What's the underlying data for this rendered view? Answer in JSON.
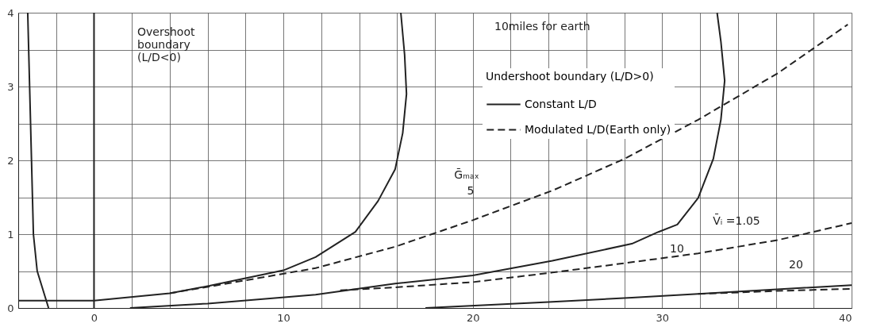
{
  "chart_data": {
    "type": "line",
    "legend_title": "Undershoot boundary (L/D>0)",
    "xlim": [
      -4,
      40
    ],
    "ylim": [
      0,
      4
    ],
    "xticks": [
      {
        "value": -4,
        "label": null
      },
      {
        "value": -2,
        "label": null
      },
      0,
      {
        "value": 2,
        "label": null
      },
      {
        "value": 4,
        "label": null
      },
      {
        "value": 6,
        "label": null
      },
      {
        "value": 8,
        "label": null
      },
      10,
      {
        "value": 12,
        "label": null
      },
      {
        "value": 14,
        "label": null
      },
      {
        "value": 16,
        "label": null
      },
      {
        "value": 18,
        "label": null
      },
      20,
      {
        "value": 22,
        "label": null
      },
      {
        "value": 24,
        "label": null
      },
      {
        "value": 26,
        "label": null
      },
      {
        "value": 28,
        "label": null
      },
      30,
      {
        "value": 32,
        "label": null
      },
      {
        "value": 34,
        "label": null
      },
      {
        "value": 36,
        "label": null
      },
      {
        "value": 38,
        "label": null
      },
      40
    ],
    "yticks": [
      0,
      {
        "value": 0.5,
        "label": null
      },
      1,
      {
        "value": 1.5,
        "label": null
      },
      2,
      {
        "value": 2.5,
        "label": null
      },
      3,
      {
        "value": 3.5,
        "label": null
      },
      4
    ],
    "grid": true,
    "legend": "top",
    "marker": "none",
    "ref_lines": [
      {
        "axis": "x",
        "value": 0,
        "color": "#222222"
      }
    ],
    "annotations": [
      "10miles for earth",
      "Overshoot boundary (L/D<0)",
      "Ḡₘₐₓ",
      "5",
      "10",
      "20",
      "V̄ᵢ =1.05"
    ],
    "series": [
      {
        "color": "#222222",
        "line_style": "solid",
        "x": [
          -3.5,
          -3.4,
          -3.3,
          -3.2,
          -3.0,
          -2.4
        ],
        "values": [
          4,
          3,
          2,
          1,
          0.5,
          0
        ]
      },
      {
        "name": "Constant L/D",
        "color": "#222222",
        "line_style": "solid",
        "x": [
          -4,
          0,
          4,
          6.1,
          10,
          11.7,
          13.8,
          15,
          15.9,
          16.3,
          16.5,
          16.4,
          16.2
        ],
        "values": [
          0.1,
          0.1,
          0.2,
          0.3,
          0.51,
          0.69,
          1.03,
          1.45,
          1.88,
          2.37,
          2.9,
          3.43,
          4.0
        ]
      },
      {
        "name": "Modulated L/D(Earth only)",
        "color": "#222222",
        "line_style": "dashed",
        "x": [
          4,
          6.1,
          11.7,
          15.9,
          20,
          24.2,
          28,
          31.9,
          36.1,
          39.8
        ],
        "values": [
          0.2,
          0.29,
          0.54,
          0.83,
          1.19,
          1.59,
          2.02,
          2.55,
          3.18,
          3.84
        ]
      },
      {
        "color": "#222222",
        "line_style": "solid",
        "x": [
          1.9,
          6,
          11.7,
          15.9,
          20,
          24.2,
          28.4,
          29.8,
          30.8,
          31.9,
          32.7,
          33.1,
          33.3,
          33.1,
          32.9
        ],
        "values": [
          0,
          0.06,
          0.18,
          0.33,
          0.44,
          0.64,
          0.87,
          1.03,
          1.13,
          1.49,
          2.02,
          2.55,
          3.08,
          3.61,
          4.0
        ]
      },
      {
        "color": "#222222",
        "line_style": "dashed",
        "x": [
          13,
          15.9,
          20,
          24.2,
          28.4,
          31.9,
          36.1,
          40
        ],
        "values": [
          0.24,
          0.28,
          0.35,
          0.48,
          0.62,
          0.74,
          0.92,
          1.15
        ]
      },
      {
        "color": "#222222",
        "line_style": "solid",
        "x": [
          17.5,
          24,
          28.4,
          31.9,
          40
        ],
        "values": [
          0,
          0.08,
          0.14,
          0.19,
          0.31
        ]
      },
      {
        "color": "#222222",
        "line_style": "dashed",
        "x": [
          31.9,
          36,
          40
        ],
        "values": [
          0.19,
          0.23,
          0.26
        ]
      }
    ]
  }
}
